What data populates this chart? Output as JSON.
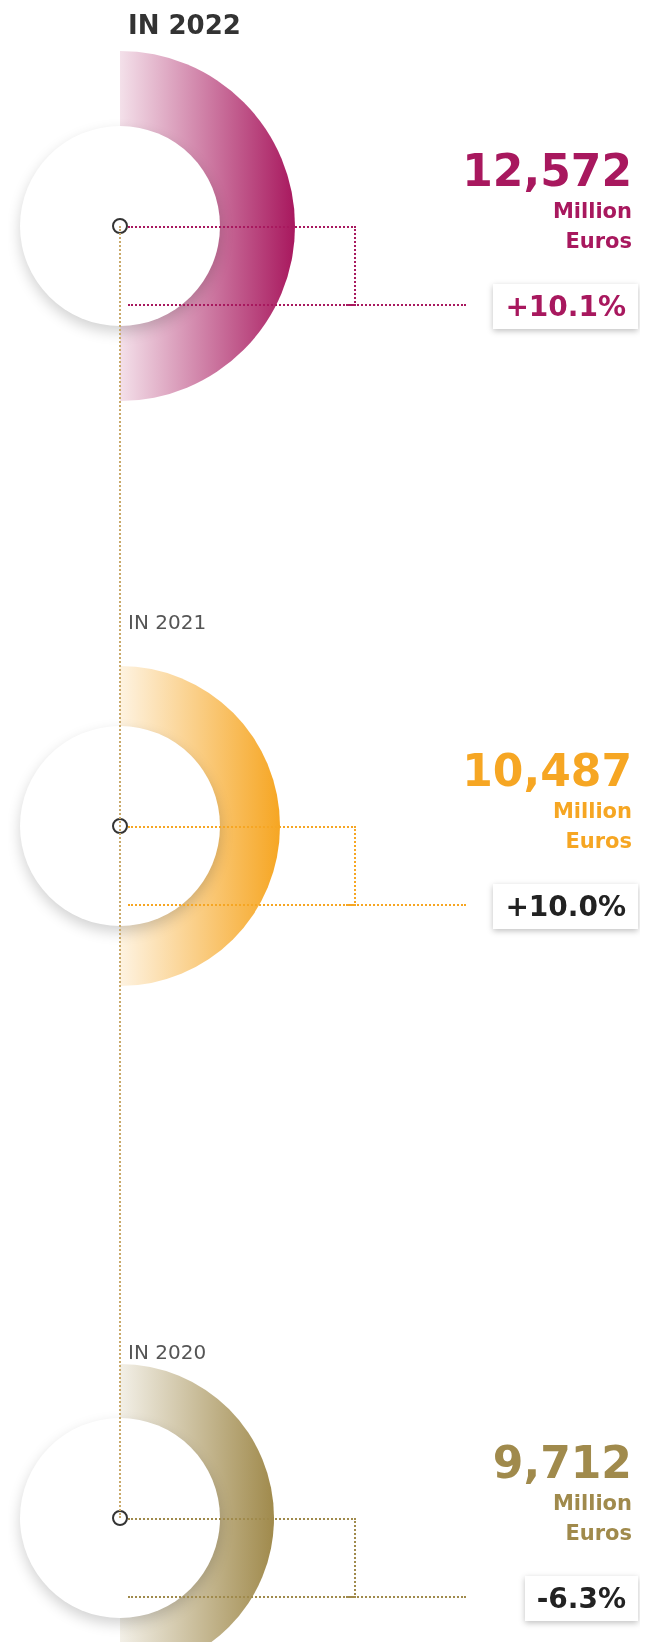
{
  "chart_data": {
    "type": "other",
    "categories": [
      "IN 2022",
      "IN 2021",
      "IN 2020"
    ],
    "values": [
      12572,
      10487,
      9712
    ],
    "value_labels": [
      "12,572",
      "10,487",
      "9,712"
    ],
    "colors": [
      "#a8185e",
      "#f6a623",
      "#a08a4c"
    ],
    "ylabel": "Million Euros",
    "annotations": [
      "+10.1%",
      "+10.0%",
      "-6.3%"
    ]
  }
}
